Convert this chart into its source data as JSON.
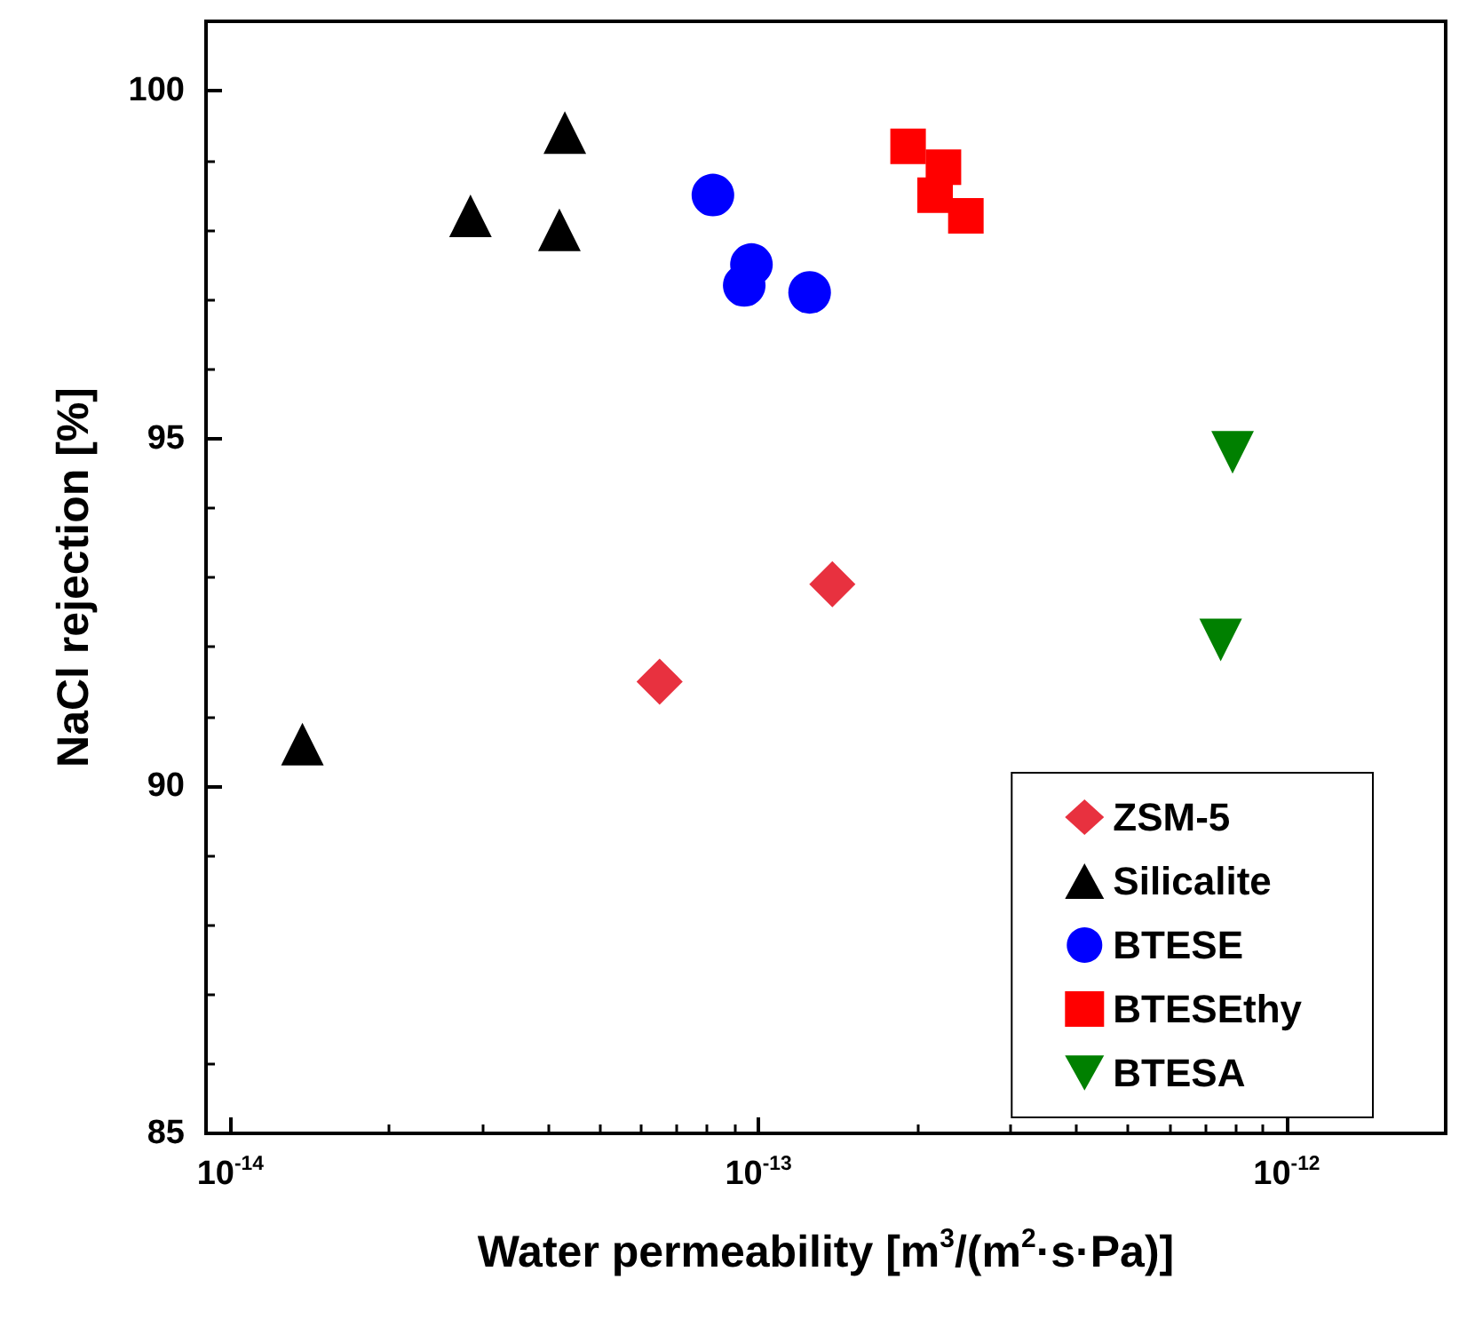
{
  "chart_data": {
    "type": "scatter",
    "xlabel": "Water permeability [m$^{3}$/(m$^{2}$·s·Pa)]",
    "ylabel": "NaCl rejection [%]",
    "log": "x",
    "xlim": [
      9e-15,
      2e-12
    ],
    "ylim": [
      85,
      101
    ],
    "xticks": [
      {
        "value": 1e-14,
        "label": "10$^{-14}$"
      },
      {
        "value": 2e-14,
        "label": null
      },
      {
        "value": 3e-14,
        "label": null
      },
      {
        "value": 4e-14,
        "label": null
      },
      {
        "value": 5e-14,
        "label": null
      },
      {
        "value": 6e-14,
        "label": null
      },
      {
        "value": 7e-14,
        "label": null
      },
      {
        "value": 8e-14,
        "label": null
      },
      {
        "value": 9e-14,
        "label": null
      },
      {
        "value": 1e-13,
        "label": "10$^{-13}$"
      },
      {
        "value": 2e-13,
        "label": null
      },
      {
        "value": 3e-13,
        "label": null
      },
      {
        "value": 4e-13,
        "label": null
      },
      {
        "value": 5e-13,
        "label": null
      },
      {
        "value": 6e-13,
        "label": null
      },
      {
        "value": 7e-13,
        "label": null
      },
      {
        "value": 8e-13,
        "label": null
      },
      {
        "value": 9e-13,
        "label": null
      },
      {
        "value": 1e-12,
        "label": "10$^{-12}$"
      }
    ],
    "yticks": [
      85,
      {
        "value": 86,
        "label": null
      },
      {
        "value": 87,
        "label": null
      },
      {
        "value": 88,
        "label": null
      },
      {
        "value": 89,
        "label": null
      },
      90,
      {
        "value": 91,
        "label": null
      },
      {
        "value": 92,
        "label": null
      },
      {
        "value": 93,
        "label": null
      },
      {
        "value": 94,
        "label": null
      },
      95,
      {
        "value": 96,
        "label": null
      },
      {
        "value": 97,
        "label": null
      },
      {
        "value": 98,
        "label": null
      },
      {
        "value": 99,
        "label": null
      },
      100
    ],
    "grid": false,
    "legend": "bottom right",
    "series": [
      {
        "name": "ZSM-5",
        "color": "#e8313f",
        "marker": "diamond",
        "x": [
          6.5e-14,
          1.38e-13
        ],
        "values": [
          91.5,
          92.9
        ]
      },
      {
        "name": "Silicalite",
        "color": "#000000",
        "marker": "triangle",
        "x": [
          1.37e-14,
          2.85e-14,
          4.3e-14,
          4.2e-14
        ],
        "values": [
          90.6,
          98.2,
          99.4,
          98.0
        ]
      },
      {
        "name": "BTESE",
        "color": "#0000ff",
        "marker": "circle",
        "x": [
          8.2e-14,
          9.7e-14,
          9.4e-14,
          1.25e-13
        ],
        "values": [
          98.5,
          97.5,
          97.2,
          97.1
        ]
      },
      {
        "name": "BTESEthy",
        "color": "#ff0000",
        "marker": "square",
        "x": [
          1.92e-13,
          2.24e-13,
          2.16e-13,
          2.47e-13
        ],
        "values": [
          99.2,
          98.9,
          98.5,
          98.2
        ]
      },
      {
        "name": "BTESA",
        "color": "#008000",
        "marker": "triangle-down",
        "x": [
          7.9e-13,
          7.5e-13
        ],
        "values": [
          94.8,
          92.1
        ]
      }
    ]
  }
}
